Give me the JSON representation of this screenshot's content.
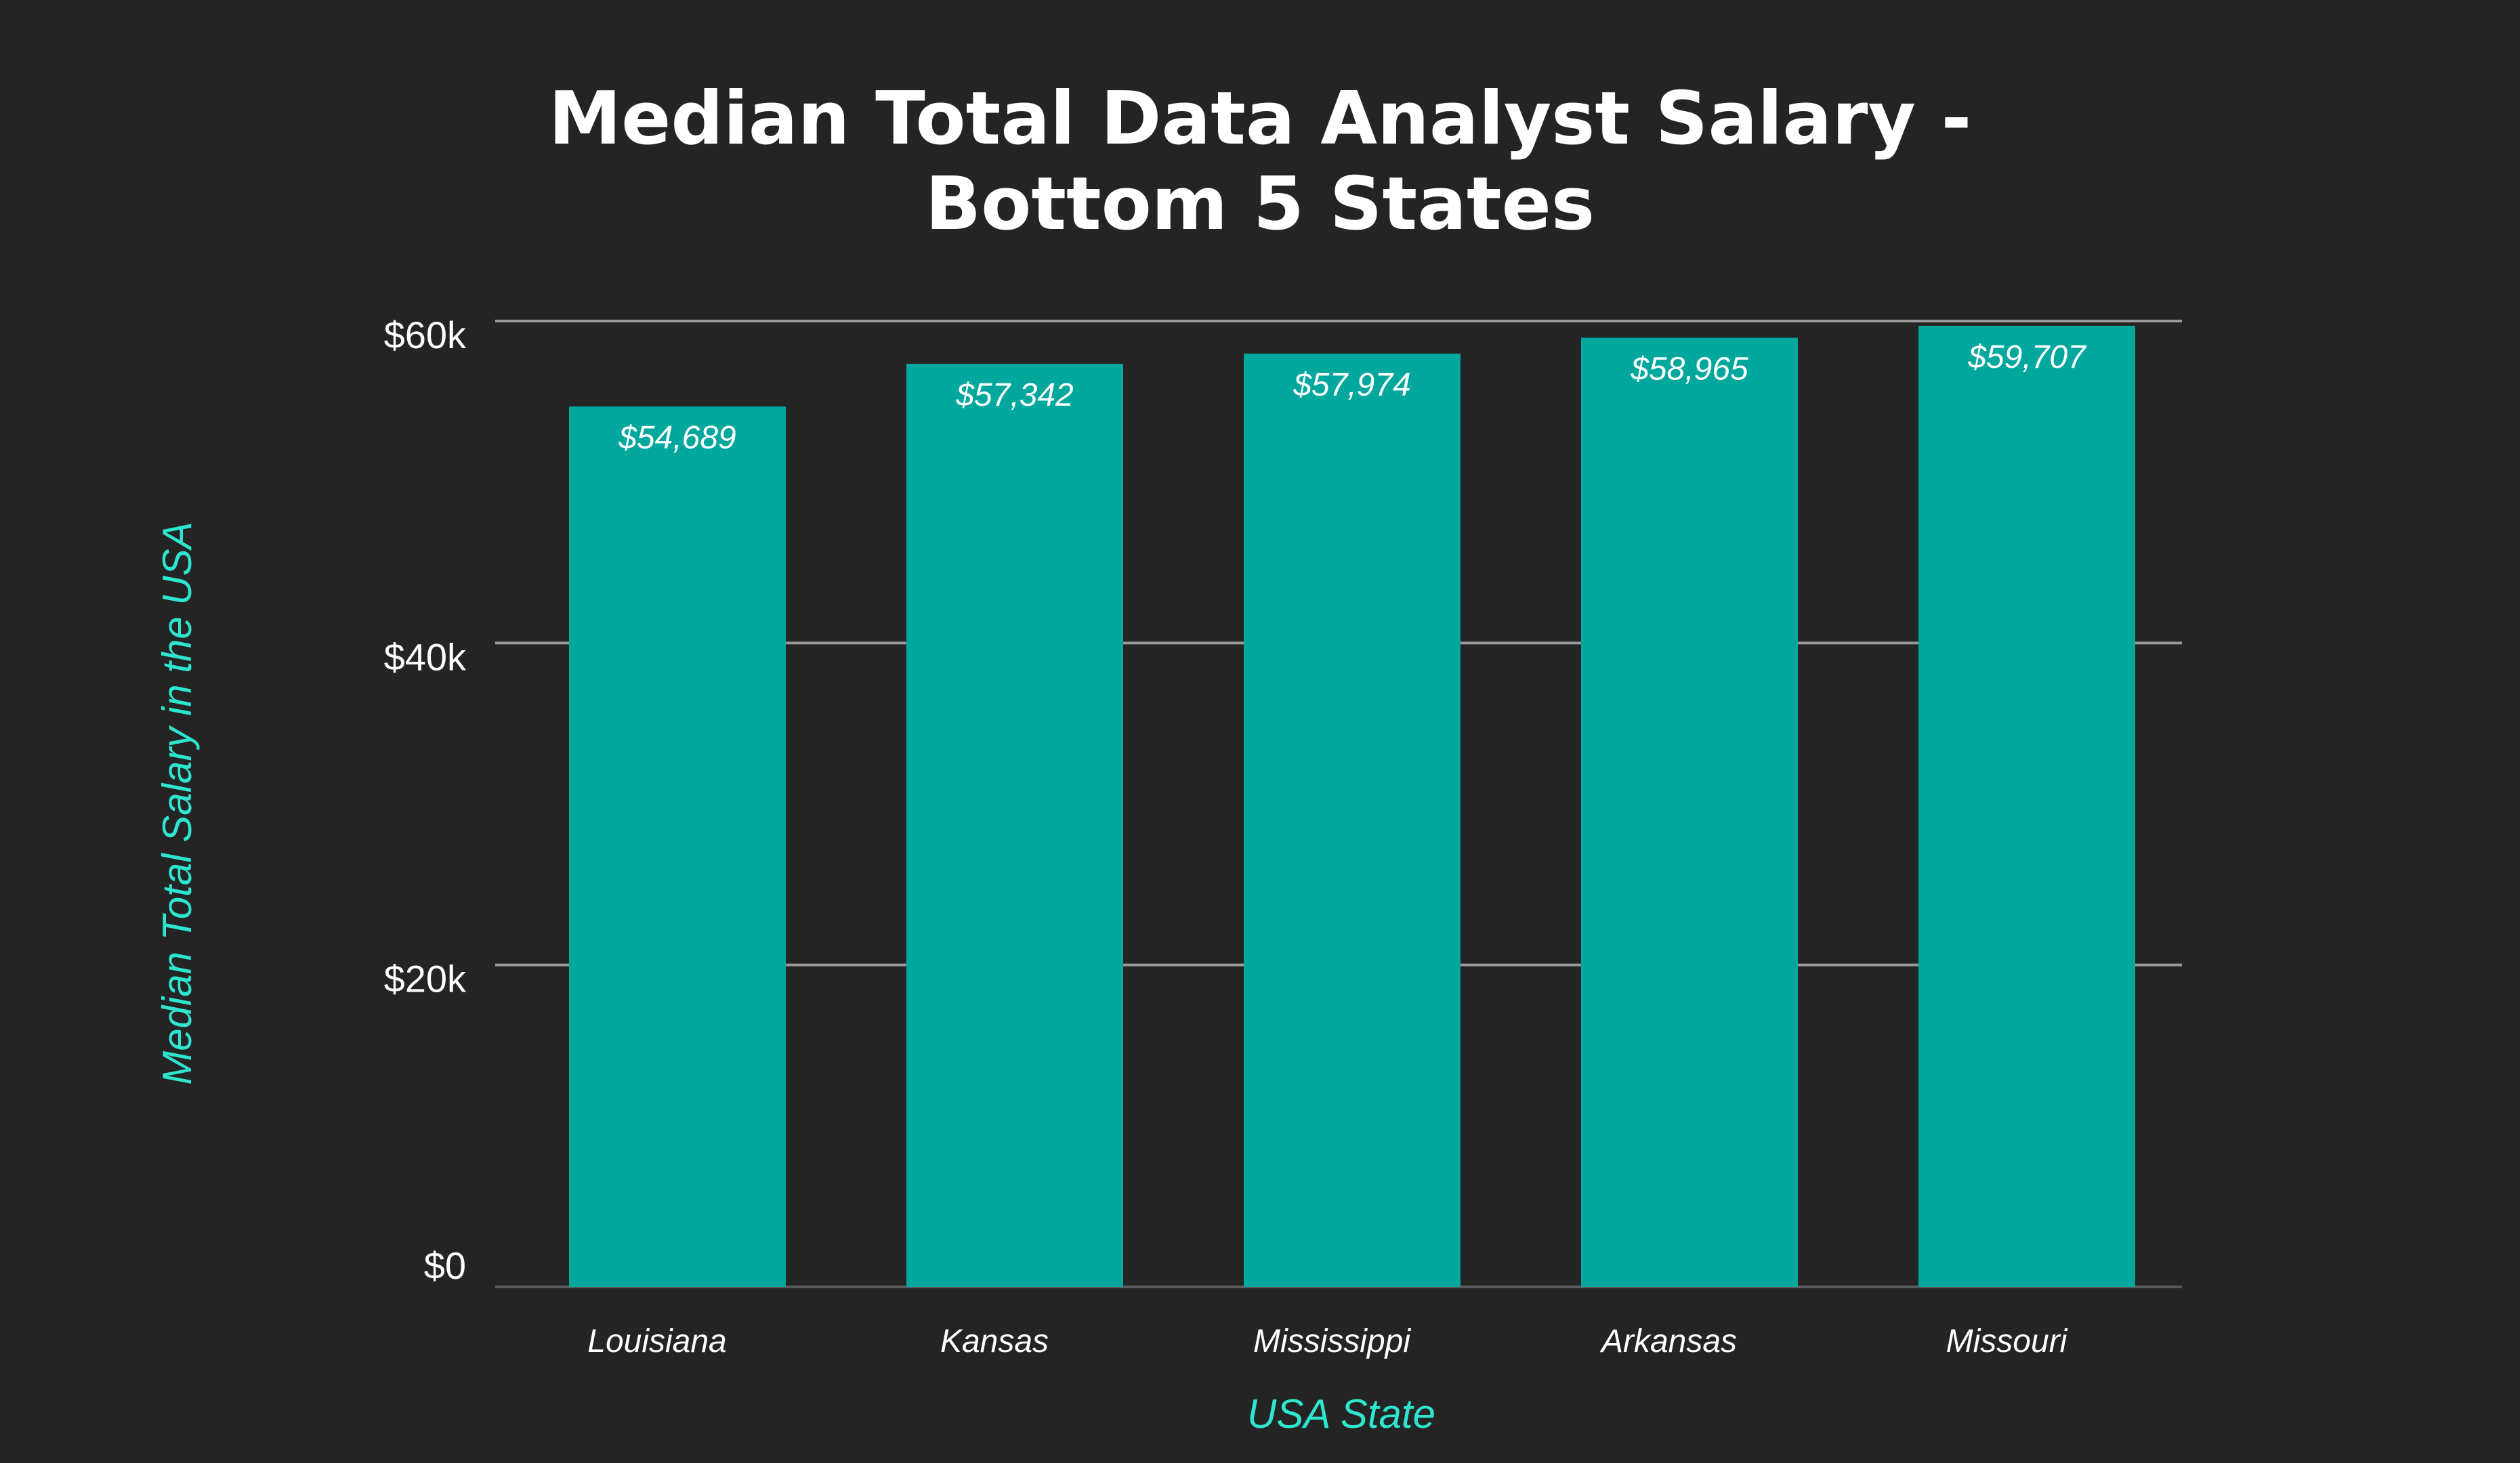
{
  "chart_data": {
    "type": "bar",
    "title_lines": [
      "Median Total Data Analyst Salary -",
      "Bottom 5 States"
    ],
    "xlabel": "USA State",
    "ylabel": "Median Total Salary in the USA",
    "categories": [
      "Louisiana",
      "Kansas",
      "Mississippi",
      "Arkansas",
      "Missouri"
    ],
    "values": [
      54689,
      57342,
      57974,
      58965,
      59707
    ],
    "data_labels": [
      "$54,689",
      "$57,342",
      "$57,974",
      "$58,965",
      "$59,707"
    ],
    "ylim": [
      0,
      60000
    ],
    "yticks": [
      0,
      20000,
      40000,
      60000
    ],
    "ytick_labels": [
      "$0",
      "$20k",
      "$40k",
      "$60k"
    ],
    "grid": true,
    "legend": "none",
    "colors": {
      "background": "#242424",
      "bar": "#00a79d",
      "axis_label": "#2ee6d0",
      "grid": "#9a9a9a"
    }
  }
}
